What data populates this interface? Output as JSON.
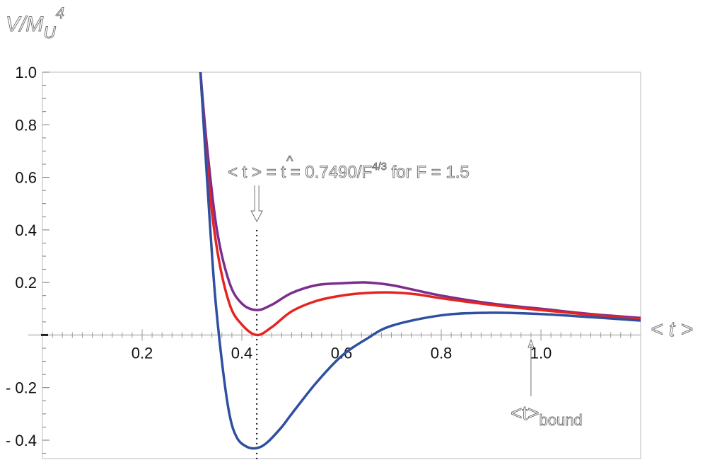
{
  "chart_data": {
    "type": "line",
    "ylabel": {
      "base": "V/M",
      "sub": "U",
      "sup": "4"
    },
    "xlabel": "< t >",
    "xlim": [
      0,
      1.2
    ],
    "ylim": [
      -0.47,
      1.0
    ],
    "x_ticks": [
      {
        "value": 0.2,
        "label": "0.2"
      },
      {
        "value": 0.4,
        "label": "0.4"
      },
      {
        "value": 0.6,
        "label": "0.6"
      },
      {
        "value": 0.8,
        "label": "0.8"
      },
      {
        "value": 1.0,
        "label": "1.0"
      }
    ],
    "y_ticks": [
      {
        "value": 1.0,
        "label": "1.0"
      },
      {
        "value": 0.8,
        "label": "0.8"
      },
      {
        "value": 0.6,
        "label": "0.6"
      },
      {
        "value": 0.4,
        "label": "0.4"
      },
      {
        "value": 0.2,
        "label": "0.2"
      },
      {
        "value": -0.2,
        "label": "- 0.2"
      },
      {
        "value": -0.4,
        "label": "- 0.4"
      }
    ],
    "grid": false,
    "series": [
      {
        "color": "#7b2e8e",
        "x": [
          0.317,
          0.33,
          0.35,
          0.375,
          0.4,
          0.43,
          0.46,
          0.5,
          0.55,
          0.6,
          0.65,
          0.7,
          0.75,
          0.8,
          0.9,
          1.0,
          1.1,
          1.2
        ],
        "y": [
          1.0,
          0.72,
          0.4,
          0.2,
          0.12,
          0.095,
          0.115,
          0.16,
          0.19,
          0.197,
          0.2,
          0.19,
          0.17,
          0.15,
          0.12,
          0.1,
          0.08,
          0.065
        ]
      },
      {
        "color": "#e52421",
        "x": [
          0.317,
          0.33,
          0.35,
          0.375,
          0.4,
          0.43,
          0.46,
          0.5,
          0.55,
          0.6,
          0.65,
          0.7,
          0.75,
          0.8,
          0.9,
          1.0,
          1.1,
          1.2
        ],
        "y": [
          1.0,
          0.65,
          0.33,
          0.12,
          0.04,
          0.0,
          0.03,
          0.09,
          0.13,
          0.15,
          0.16,
          0.162,
          0.155,
          0.14,
          0.115,
          0.095,
          0.077,
          0.06
        ]
      },
      {
        "color": "#2f4fa1",
        "x": [
          0.317,
          0.33,
          0.345,
          0.36,
          0.375,
          0.39,
          0.41,
          0.43,
          0.45,
          0.48,
          0.5,
          0.55,
          0.6,
          0.65,
          0.7,
          0.8,
          0.9,
          1.0,
          1.1,
          1.2
        ],
        "y": [
          1.0,
          0.6,
          0.18,
          -0.1,
          -0.3,
          -0.39,
          -0.425,
          -0.43,
          -0.41,
          -0.35,
          -0.3,
          -0.18,
          -0.08,
          -0.015,
          0.035,
          0.075,
          0.085,
          0.08,
          0.068,
          0.055
        ]
      }
    ],
    "annotations": {
      "that": {
        "pre": "< t > = ",
        "hat": "^",
        "hat_base": "t",
        "post": " = 0.7490/F",
        "sup": "4/3",
        "tail": "   for F = 1.5",
        "x": 0.43
      },
      "bound": {
        "main": "<t>",
        "sub": "bound",
        "x": 0.98
      }
    }
  }
}
